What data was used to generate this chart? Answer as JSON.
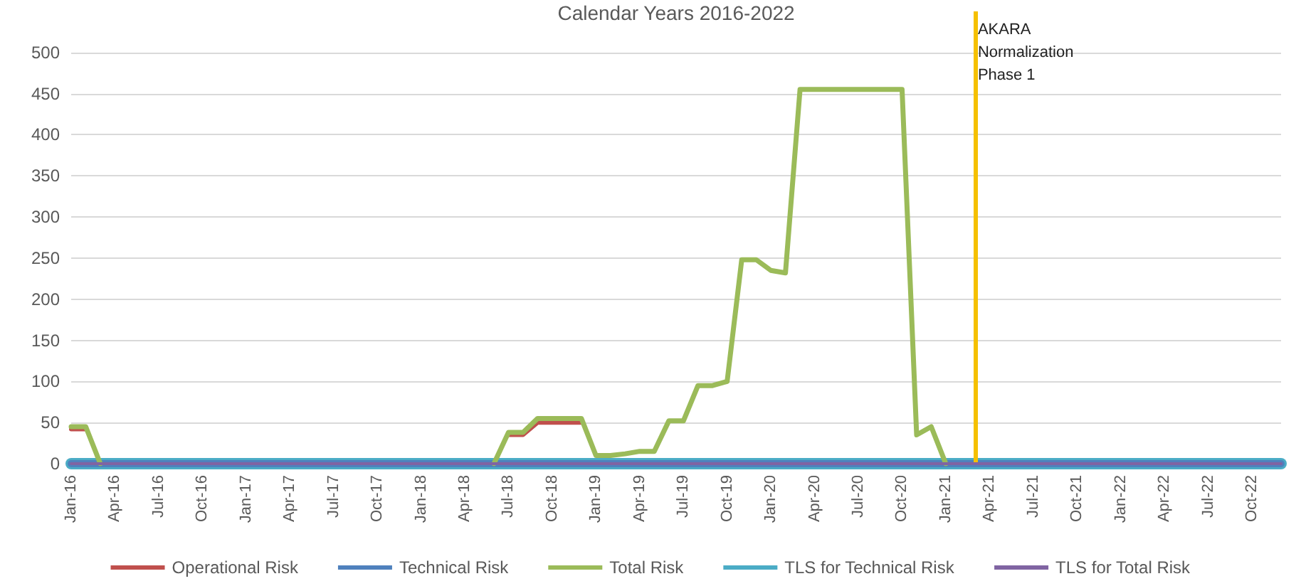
{
  "chart_data": {
    "type": "line",
    "title": "Calendar Years 2016-2022",
    "x": [
      "2016-01",
      "2016-02",
      "2016-03",
      "2016-04",
      "2016-05",
      "2016-06",
      "2016-07",
      "2016-08",
      "2016-09",
      "2016-10",
      "2016-11",
      "2016-12",
      "2017-01",
      "2017-02",
      "2017-03",
      "2017-04",
      "2017-05",
      "2017-06",
      "2017-07",
      "2017-08",
      "2017-09",
      "2017-10",
      "2017-11",
      "2017-12",
      "2018-01",
      "2018-02",
      "2018-03",
      "2018-04",
      "2018-05",
      "2018-06",
      "2018-07",
      "2018-08",
      "2018-09",
      "2018-10",
      "2018-11",
      "2018-12",
      "2019-01",
      "2019-02",
      "2019-03",
      "2019-04",
      "2019-05",
      "2019-06",
      "2019-07",
      "2019-08",
      "2019-09",
      "2019-10",
      "2019-11",
      "2019-12",
      "2020-01",
      "2020-02",
      "2020-03",
      "2020-04",
      "2020-05",
      "2020-06",
      "2020-07",
      "2020-08",
      "2020-09",
      "2020-10",
      "2020-11",
      "2020-12",
      "2021-01",
      "2021-02",
      "2021-03",
      "2021-04",
      "2021-05",
      "2021-06",
      "2021-07",
      "2021-08",
      "2021-09",
      "2021-10",
      "2021-11",
      "2021-12",
      "2022-01",
      "2022-02",
      "2022-03",
      "2022-04",
      "2022-05",
      "2022-06",
      "2022-07",
      "2022-08",
      "2022-09",
      "2022-10",
      "2022-11",
      "2022-12"
    ],
    "series": [
      {
        "name": "Operational Risk",
        "color": "#c0504d",
        "values": [
          42,
          42,
          null,
          null,
          null,
          null,
          null,
          null,
          null,
          null,
          null,
          null,
          null,
          null,
          null,
          null,
          null,
          null,
          null,
          null,
          null,
          null,
          null,
          null,
          null,
          null,
          null,
          null,
          null,
          null,
          35,
          35,
          50,
          50,
          50,
          50,
          null,
          null,
          null,
          null,
          null,
          null,
          null,
          null,
          null,
          null,
          null,
          null,
          null,
          null,
          null,
          null,
          null,
          null,
          null,
          null,
          null,
          null,
          null,
          null,
          null,
          null,
          null,
          null,
          null,
          null,
          null,
          null,
          null,
          null,
          null,
          null,
          null,
          null,
          null,
          null,
          null,
          null,
          null,
          null,
          null,
          null,
          null,
          null
        ]
      },
      {
        "name": "Technical Risk",
        "color": "#4f81bd",
        "values": [
          0,
          0,
          0,
          0,
          0,
          0,
          0,
          0,
          0,
          0,
          0,
          0,
          0,
          0,
          0,
          0,
          0,
          0,
          0,
          0,
          0,
          0,
          0,
          0,
          0,
          0,
          0,
          0,
          0,
          0,
          0,
          0,
          0,
          0,
          0,
          0,
          0,
          0,
          0,
          0,
          0,
          0,
          0,
          0,
          0,
          0,
          0,
          0,
          0,
          0,
          0,
          0,
          0,
          0,
          0,
          0,
          0,
          0,
          0,
          0,
          0,
          0,
          0,
          0,
          0,
          0,
          0,
          0,
          0,
          0,
          0,
          0,
          0,
          0,
          0,
          0,
          0,
          0,
          0,
          0,
          0,
          0,
          0,
          0
        ]
      },
      {
        "name": "Total Risk",
        "color": "#9bbb59",
        "values": [
          45,
          45,
          0,
          null,
          null,
          null,
          null,
          null,
          null,
          null,
          null,
          null,
          null,
          null,
          null,
          null,
          null,
          null,
          null,
          null,
          null,
          null,
          null,
          null,
          null,
          null,
          null,
          null,
          null,
          0,
          38,
          38,
          55,
          55,
          55,
          55,
          10,
          10,
          12,
          15,
          15,
          52,
          52,
          95,
          95,
          100,
          248,
          248,
          235,
          232,
          455,
          455,
          455,
          455,
          455,
          455,
          455,
          455,
          35,
          45,
          0,
          null,
          null,
          null,
          null,
          null,
          null,
          null,
          null,
          null,
          null,
          null,
          null,
          null,
          null,
          null,
          null,
          null,
          null,
          null,
          null,
          null,
          null,
          null
        ]
      },
      {
        "name": "TLS for Technical Risk",
        "color": "#4bacc6",
        "values": [
          0,
          0,
          0,
          0,
          0,
          0,
          0,
          0,
          0,
          0,
          0,
          0,
          0,
          0,
          0,
          0,
          0,
          0,
          0,
          0,
          0,
          0,
          0,
          0,
          0,
          0,
          0,
          0,
          0,
          0,
          0,
          0,
          0,
          0,
          0,
          0,
          0,
          0,
          0,
          0,
          0,
          0,
          0,
          0,
          0,
          0,
          0,
          0,
          0,
          0,
          0,
          0,
          0,
          0,
          0,
          0,
          0,
          0,
          0,
          0,
          0,
          0,
          0,
          0,
          0,
          0,
          0,
          0,
          0,
          0,
          0,
          0,
          0,
          0,
          0,
          0,
          0,
          0,
          0,
          0,
          0,
          0,
          0,
          0
        ]
      },
      {
        "name": "TLS for Total Risk",
        "color": "#8064a2",
        "values": [
          0,
          0,
          0,
          0,
          0,
          0,
          0,
          0,
          0,
          0,
          0,
          0,
          0,
          0,
          0,
          0,
          0,
          0,
          0,
          0,
          0,
          0,
          0,
          0,
          0,
          0,
          0,
          0,
          0,
          0,
          0,
          0,
          0,
          0,
          0,
          0,
          0,
          0,
          0,
          0,
          0,
          0,
          0,
          0,
          0,
          0,
          0,
          0,
          0,
          0,
          0,
          0,
          0,
          0,
          0,
          0,
          0,
          0,
          0,
          0,
          0,
          0,
          0,
          0,
          0,
          0,
          0,
          0,
          0,
          0,
          0,
          0,
          0,
          0,
          0,
          0,
          0,
          0,
          0,
          0,
          0,
          0,
          0,
          0
        ]
      }
    ],
    "xlim": [
      "2016-01",
      "2022-12"
    ],
    "xticks": [
      {
        "value": "2016-01",
        "label": "Jan-16"
      },
      {
        "value": "2016-04",
        "label": "Apr-16"
      },
      {
        "value": "2016-07",
        "label": "Jul-16"
      },
      {
        "value": "2016-10",
        "label": "Oct-16"
      },
      {
        "value": "2017-01",
        "label": "Jan-17"
      },
      {
        "value": "2017-04",
        "label": "Apr-17"
      },
      {
        "value": "2017-07",
        "label": "Jul-17"
      },
      {
        "value": "2017-10",
        "label": "Oct-17"
      },
      {
        "value": "2018-01",
        "label": "Jan-18"
      },
      {
        "value": "2018-04",
        "label": "Apr-18"
      },
      {
        "value": "2018-07",
        "label": "Jul-18"
      },
      {
        "value": "2018-10",
        "label": "Oct-18"
      },
      {
        "value": "2019-01",
        "label": "Jan-19"
      },
      {
        "value": "2019-04",
        "label": "Apr-19"
      },
      {
        "value": "2019-07",
        "label": "Jul-19"
      },
      {
        "value": "2019-10",
        "label": "Oct-19"
      },
      {
        "value": "2020-01",
        "label": "Jan-20"
      },
      {
        "value": "2020-04",
        "label": "Apr-20"
      },
      {
        "value": "2020-07",
        "label": "Jul-20"
      },
      {
        "value": "2020-10",
        "label": "Oct-20"
      },
      {
        "value": "2021-01",
        "label": "Jan-21"
      },
      {
        "value": "2021-04",
        "label": "Apr-21"
      },
      {
        "value": "2021-07",
        "label": "Jul-21"
      },
      {
        "value": "2021-10",
        "label": "Oct-21"
      },
      {
        "value": "2022-01",
        "label": "Jan-22"
      },
      {
        "value": "2022-04",
        "label": "Apr-22"
      },
      {
        "value": "2022-07",
        "label": "Jul-22"
      },
      {
        "value": "2022-10",
        "label": "Oct-22"
      }
    ],
    "ylim": [
      0,
      550
    ],
    "yticks": [
      0,
      50,
      100,
      150,
      200,
      250,
      300,
      350,
      400,
      450,
      500
    ],
    "ref_lines": [
      {
        "axis": "x",
        "value": "2021-03",
        "label": "AKARA Normalization Phase 1",
        "color": "#f5c000"
      }
    ],
    "grid": "y",
    "legend": "bottom",
    "marker": "none",
    "line_style": "solid"
  }
}
